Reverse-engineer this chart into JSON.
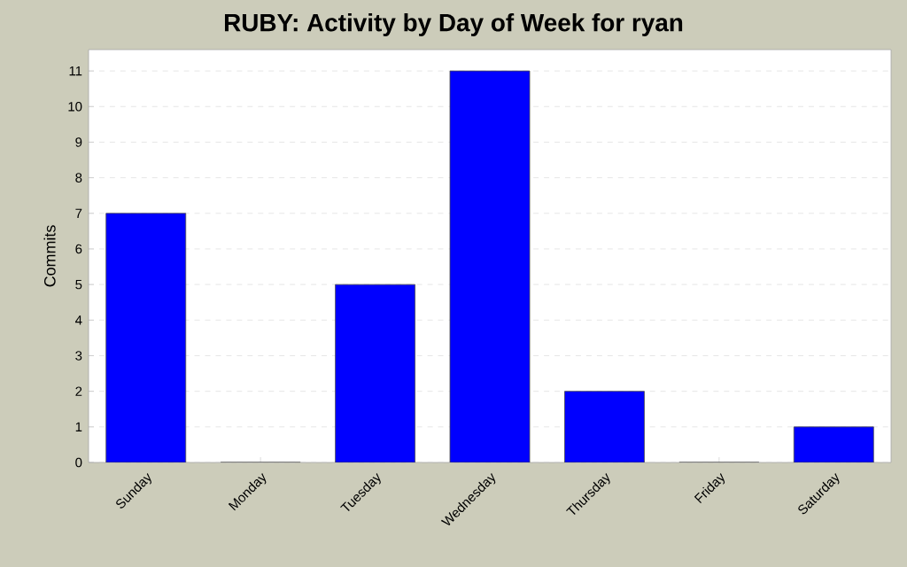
{
  "chart_data": {
    "type": "bar",
    "title": "RUBY: Activity by Day of Week for ryan",
    "ylabel": "Commits",
    "categories": [
      "Sunday",
      "Monday",
      "Tuesday",
      "Wednesday",
      "Thursday",
      "Friday",
      "Saturday"
    ],
    "values": [
      7,
      0,
      5,
      11,
      2,
      0,
      1
    ],
    "color": "#0000ff",
    "ylim": [
      0,
      11.6
    ],
    "yticks": [
      0,
      1,
      2,
      3,
      4,
      5,
      6,
      7,
      8,
      9,
      10,
      11
    ],
    "grid": "y"
  }
}
